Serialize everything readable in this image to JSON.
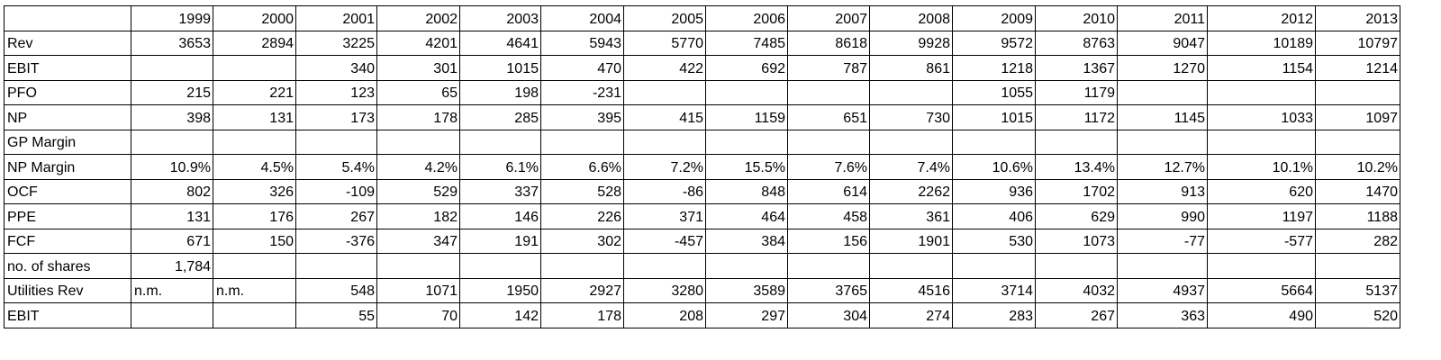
{
  "table": {
    "header": [
      null,
      "1999",
      "2000",
      "2001",
      "2002",
      "2003",
      "2004",
      "2005",
      "2006",
      "2007",
      "2008",
      "2009",
      "2010",
      "2011",
      "2012",
      "2013"
    ],
    "rows": [
      [
        "Rev",
        "3653",
        "2894",
        "3225",
        "4201",
        "4641",
        "5943",
        "5770",
        "7485",
        "8618",
        "9928",
        "9572",
        "8763",
        "9047",
        "10189",
        "10797"
      ],
      [
        "EBIT",
        null,
        null,
        "340",
        "301",
        "1015",
        "470",
        "422",
        "692",
        "787",
        "861",
        "1218",
        "1367",
        "1270",
        "1154",
        "1214"
      ],
      [
        "PFO",
        "215",
        "221",
        "123",
        "65",
        "198",
        "-231",
        null,
        null,
        null,
        null,
        "1055",
        "1179",
        null,
        null,
        null
      ],
      [
        "NP",
        "398",
        "131",
        "173",
        "178",
        "285",
        "395",
        "415",
        "1159",
        "651",
        "730",
        "1015",
        "1172",
        "1145",
        "1033",
        "1097"
      ],
      [
        "GP Margin",
        null,
        null,
        null,
        null,
        null,
        null,
        null,
        null,
        null,
        null,
        null,
        null,
        null,
        null,
        null
      ],
      [
        "NP Margin",
        "10.9%",
        "4.5%",
        "5.4%",
        "4.2%",
        "6.1%",
        "6.6%",
        "7.2%",
        "15.5%",
        "7.6%",
        "7.4%",
        "10.6%",
        "13.4%",
        "12.7%",
        "10.1%",
        "10.2%"
      ],
      [
        "OCF",
        "802",
        "326",
        "-109",
        "529",
        "337",
        "528",
        "-86",
        "848",
        "614",
        "2262",
        "936",
        "1702",
        "913",
        "620",
        "1470"
      ],
      [
        "PPE",
        "131",
        "176",
        "267",
        "182",
        "146",
        "226",
        "371",
        "464",
        "458",
        "361",
        "406",
        "629",
        "990",
        "1197",
        "1188"
      ],
      [
        "FCF",
        "671",
        "150",
        "-376",
        "347",
        "191",
        "302",
        "-457",
        "384",
        "156",
        "1901",
        "530",
        "1073",
        "-77",
        "-577",
        "282"
      ],
      [
        "no. of shares",
        "1,784",
        null,
        null,
        null,
        null,
        null,
        null,
        null,
        null,
        null,
        null,
        null,
        null,
        null,
        null
      ],
      [
        "Utilities Rev",
        "n.m.",
        "n.m.",
        "548",
        "1071",
        "1950",
        "2927",
        "3280",
        "3589",
        "3765",
        "4516",
        "3714",
        "4032",
        "4937",
        "5664",
        "5137"
      ],
      [
        "EBIT",
        null,
        null,
        "55",
        "70",
        "142",
        "178",
        "208",
        "297",
        "304",
        "274",
        "283",
        "267",
        "363",
        "490",
        "520"
      ]
    ]
  }
}
